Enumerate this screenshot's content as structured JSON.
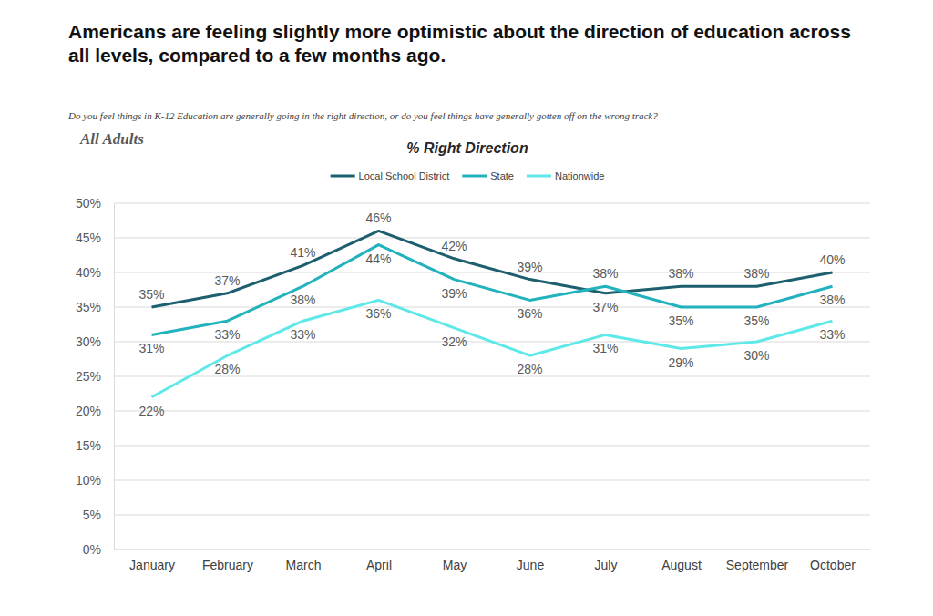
{
  "chart_data": {
    "type": "line",
    "title": "Americans are feeling slightly more optimistic about the direction of education across all levels, compared to a few months ago.",
    "subtitle": "Do you feel things in K-12 Education are generally going in the right direction, or do you feel things have generally gotten off on the wrong track?",
    "annotations": [
      "All Adults"
    ],
    "ylabel": "% Right Direction",
    "categories": [
      "January",
      "February",
      "March",
      "April",
      "May",
      "June",
      "July",
      "August",
      "September",
      "October"
    ],
    "series": [
      {
        "name": "Local School District",
        "color": "#1d5f6f",
        "values": [
          35,
          37,
          41,
          46,
          42,
          39,
          37,
          38,
          38,
          40
        ],
        "value_labels": [
          "35%",
          "37%",
          "41%",
          "46%",
          "42%",
          "39%",
          "37%",
          "38%",
          "38%",
          "40%"
        ]
      },
      {
        "name": "State",
        "color": "#22b2bd",
        "values": [
          31,
          33,
          38,
          44,
          39,
          36,
          38,
          35,
          35,
          38
        ],
        "value_labels": [
          "31%",
          "33%",
          "38%",
          "44%",
          "39%",
          "36%",
          "38%",
          "35%",
          "35%",
          "38%"
        ]
      },
      {
        "name": "Nationwide",
        "color": "#5ee8e8",
        "values": [
          22,
          28,
          33,
          36,
          32,
          28,
          31,
          29,
          30,
          33
        ],
        "value_labels": [
          "22%",
          "28%",
          "33%",
          "36%",
          "32%",
          "28%",
          "31%",
          "29%",
          "30%",
          "33%"
        ]
      }
    ],
    "ylim": [
      0,
      50
    ],
    "yticks": [
      {
        "value": 0,
        "label": "0%"
      },
      {
        "value": 5,
        "label": "5%"
      },
      {
        "value": 10,
        "label": "10%"
      },
      {
        "value": 15,
        "label": "15%"
      },
      {
        "value": 20,
        "label": "20%"
      },
      {
        "value": 25,
        "label": "25%"
      },
      {
        "value": 30,
        "label": "30%"
      },
      {
        "value": 35,
        "label": "35%"
      },
      {
        "value": 40,
        "label": "40%"
      },
      {
        "value": 45,
        "label": "45%"
      },
      {
        "value": 50,
        "label": "50%"
      }
    ],
    "grid": true,
    "legend": "top",
    "data_labels": true
  }
}
